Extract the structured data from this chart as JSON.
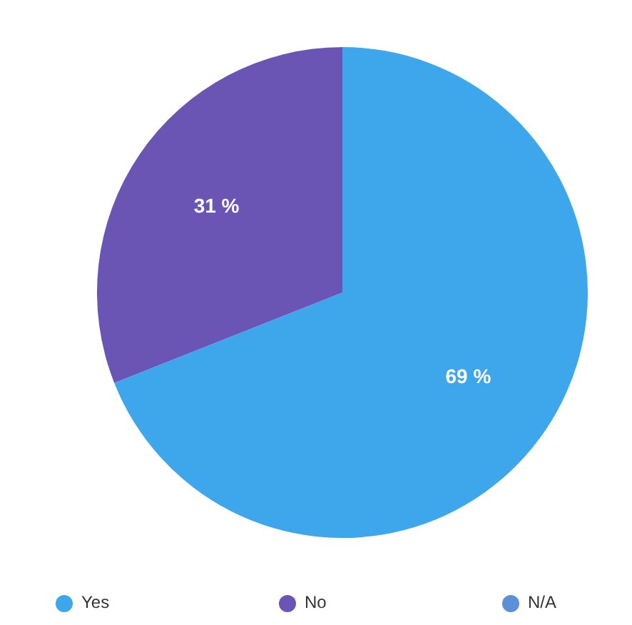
{
  "chart_data": {
    "type": "pie",
    "categories": [
      "Yes",
      "No",
      "N/A"
    ],
    "values": [
      69,
      31,
      0
    ],
    "colors": [
      "#3ea7ec",
      "#6a55b5",
      "#5b8fd6"
    ],
    "value_labels": [
      "69 %",
      "31 %",
      null
    ],
    "legend": "bottom"
  }
}
